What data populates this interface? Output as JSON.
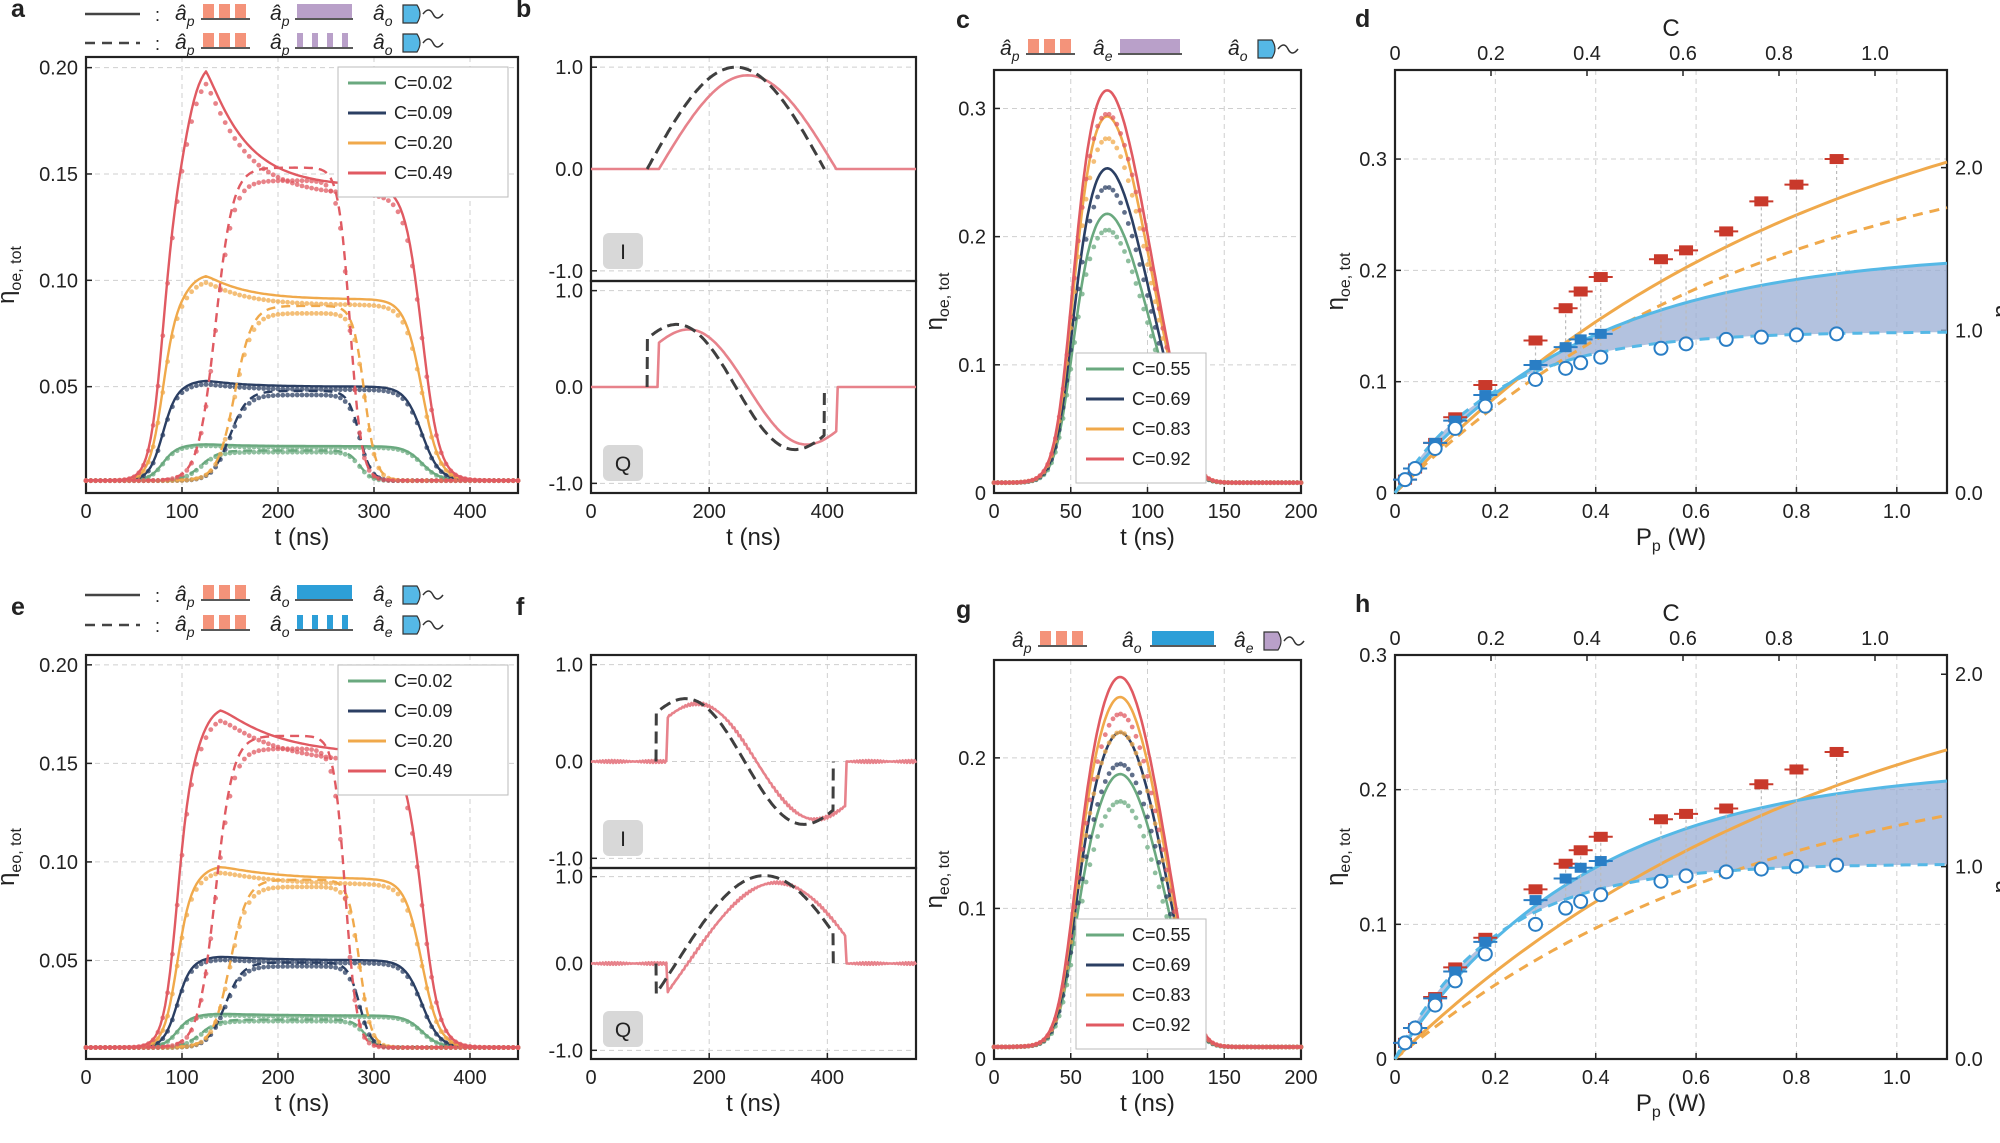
{
  "colors": {
    "green": "#6aa97f",
    "navy": "#2b3f63",
    "orange": "#f0a94b",
    "red": "#e05a62",
    "pink": "#e7828b",
    "dark": "#3f3f3f",
    "blue": "#2d9fd8",
    "lightblue": "#55b8e6",
    "band": "#9aaed4",
    "salmon": "#f4937a",
    "purple": "#b9a0c9",
    "datared": "#c9392b",
    "datablue": "#2a7ec5"
  },
  "labels": {
    "a": "a",
    "b": "b",
    "c": "c",
    "d": "d",
    "e": "e",
    "f": "f",
    "g": "g",
    "h": "h",
    "t_ns": "t (ns)",
    "eta_oe_tot": "η",
    "eta_oe_sub": "oe, tot",
    "eta_eo_sub": "eo, tot",
    "eta_oe_in_sub": "oe, in",
    "eta_eo_in_sub": "eo, in",
    "pp": "P",
    "pp_sub": "p",
    "pp_unit": " (W)",
    "C_axis": "C",
    "I": "I",
    "Q": "Q",
    "colon": ":",
    "ap": "â",
    "ap_sub": "p",
    "ae_sub": "e",
    "ao_sub": "o"
  },
  "chart_data": [
    {
      "panel": "a",
      "type": "line",
      "xlabel": "t (ns)",
      "ylabel": "η_oe, tot",
      "xlim": [
        0,
        450
      ],
      "ylim": [
        0,
        0.2
      ],
      "xticks": [
        "0",
        "100",
        "200",
        "300",
        "400"
      ],
      "yticks": [
        "0.05",
        "0.10",
        "0.15",
        "0.20"
      ],
      "legend": [
        "C=0.02",
        "C=0.09",
        "C=0.20",
        "C=0.49"
      ],
      "series": [
        {
          "name": "C=0.02",
          "solid_plateau": 0.016,
          "dashed_plateau": 0.014
        },
        {
          "name": "C=0.09",
          "solid_plateau": 0.044,
          "dashed_plateau": 0.042
        },
        {
          "name": "C=0.20",
          "solid_plateau": 0.085,
          "dashed_plateau": 0.082,
          "solid_peak": 0.097
        },
        {
          "name": "C=0.49",
          "solid_plateau": 0.138,
          "dashed_plateau": 0.147,
          "solid_peak": 0.197
        }
      ]
    },
    {
      "panel": "b",
      "type": "line",
      "xlabel": "t (ns)",
      "xlim": [
        0,
        550
      ],
      "xticks": [
        "0",
        "200",
        "400"
      ],
      "I": {
        "yticks": [
          "-1.0",
          "0.0",
          "1.0"
        ],
        "ylim": [
          -1.1,
          1.1
        ]
      },
      "Q": {
        "yticks": [
          "-1.0",
          "0.0",
          "1.0"
        ],
        "ylim": [
          -1.1,
          1.1
        ]
      }
    },
    {
      "panel": "c",
      "type": "line",
      "xlabel": "t (ns)",
      "ylabel": "η_oe, tot",
      "xlim": [
        0,
        200
      ],
      "ylim": [
        0,
        0.33
      ],
      "xticks": [
        "0",
        "50",
        "100",
        "150",
        "200"
      ],
      "yticks": [
        "0",
        "0.1",
        "0.2",
        "0.3"
      ],
      "legend": [
        "C=0.55",
        "C=0.69",
        "C=0.83",
        "C=0.92"
      ],
      "peaks": [
        0.215,
        0.25,
        0.29,
        0.31
      ]
    },
    {
      "panel": "d",
      "type": "scatter",
      "xlabel": "P_p (W)",
      "ylabel": "η_oe, tot",
      "y2label": "η_oe, in",
      "x2label": "C",
      "xlim": [
        0,
        1.1
      ],
      "ylim": [
        0,
        0.38
      ],
      "xticks": [
        "0",
        "0.2",
        "0.4",
        "0.6",
        "0.8",
        "1.0"
      ],
      "yticks": [
        "0",
        "0.1",
        "0.2",
        "0.3"
      ],
      "y2ticks": [
        "0.0",
        "1.0",
        "2.0"
      ],
      "x2ticks": [
        "0",
        "0.2",
        "0.4",
        "0.6",
        "0.8",
        "1.0"
      ],
      "red_points": {
        "x": [
          0.02,
          0.04,
          0.08,
          0.12,
          0.18,
          0.28,
          0.34,
          0.37,
          0.41,
          0.53,
          0.58,
          0.66,
          0.73,
          0.8,
          0.88
        ],
        "y": [
          0.012,
          0.022,
          0.045,
          0.068,
          0.097,
          0.137,
          0.166,
          0.181,
          0.194,
          0.21,
          0.218,
          0.235,
          0.262,
          0.277,
          0.3
        ]
      },
      "blue_points": {
        "x": [
          0.02,
          0.04,
          0.08,
          0.12,
          0.18,
          0.28,
          0.34,
          0.37,
          0.41
        ],
        "y": [
          0.012,
          0.022,
          0.045,
          0.065,
          0.088,
          0.115,
          0.131,
          0.138,
          0.143
        ]
      },
      "circle_points": {
        "x": [
          0.02,
          0.04,
          0.08,
          0.12,
          0.18,
          0.28,
          0.34,
          0.37,
          0.41,
          0.53,
          0.58,
          0.66,
          0.73,
          0.8,
          0.88
        ],
        "y": [
          0.012,
          0.022,
          0.04,
          0.058,
          0.078,
          0.102,
          0.112,
          0.117,
          0.122,
          0.13,
          0.134,
          0.138,
          0.14,
          0.142,
          0.143
        ]
      }
    },
    {
      "panel": "e",
      "type": "line",
      "xlabel": "t (ns)",
      "ylabel": "η_eo, tot",
      "xlim": [
        0,
        450
      ],
      "ylim": [
        0,
        0.2
      ],
      "xticks": [
        "0",
        "100",
        "200",
        "300",
        "400"
      ],
      "yticks": [
        "0.05",
        "0.10",
        "0.15",
        "0.20"
      ],
      "legend": [
        "C=0.02",
        "C=0.09",
        "C=0.20",
        "C=0.49"
      ]
    },
    {
      "panel": "f",
      "type": "line",
      "xlabel": "t (ns)",
      "xlim": [
        0,
        550
      ],
      "xticks": [
        "0",
        "200",
        "400"
      ],
      "I": {
        "yticks": [
          "-1.0",
          "0.0",
          "1.0"
        ]
      },
      "Q": {
        "yticks": [
          "-1.0",
          "0.0",
          "1.0"
        ]
      }
    },
    {
      "panel": "g",
      "type": "line",
      "xlabel": "t (ns)",
      "ylabel": "η_eo, tot",
      "xlim": [
        0,
        200
      ],
      "ylim": [
        0,
        0.265
      ],
      "xticks": [
        "0",
        "50",
        "100",
        "150",
        "200"
      ],
      "yticks": [
        "0",
        "0.1",
        "0.2"
      ],
      "legend": [
        "C=0.55",
        "C=0.69",
        "C=0.83",
        "C=0.92"
      ],
      "peaks": [
        0.185,
        0.212,
        0.235,
        0.248
      ]
    },
    {
      "panel": "h",
      "type": "scatter",
      "xlabel": "P_p (W)",
      "ylabel": "η_eo, tot",
      "y2label": "η_eo, in",
      "x2label": "C",
      "xlim": [
        0,
        1.1
      ],
      "ylim": [
        0,
        0.3
      ],
      "xticks": [
        "0",
        "0.2",
        "0.4",
        "0.6",
        "0.8",
        "1.0"
      ],
      "yticks": [
        "0",
        "0.1",
        "0.2",
        "0.3"
      ],
      "y2ticks": [
        "0.0",
        "1.0",
        "2.0"
      ],
      "x2ticks": [
        "0",
        "0.2",
        "0.4",
        "0.6",
        "0.8",
        "1.0"
      ],
      "red_points": {
        "x": [
          0.02,
          0.04,
          0.08,
          0.12,
          0.18,
          0.28,
          0.34,
          0.37,
          0.41,
          0.53,
          0.58,
          0.66,
          0.73,
          0.8,
          0.88
        ],
        "y": [
          0.012,
          0.023,
          0.046,
          0.068,
          0.09,
          0.126,
          0.145,
          0.155,
          0.165,
          0.178,
          0.182,
          0.186,
          0.204,
          0.215,
          0.228
        ]
      },
      "blue_points": {
        "x": [
          0.02,
          0.04,
          0.08,
          0.12,
          0.18,
          0.28,
          0.34,
          0.37,
          0.41
        ],
        "y": [
          0.012,
          0.023,
          0.045,
          0.065,
          0.087,
          0.118,
          0.134,
          0.142,
          0.147
        ]
      },
      "circle_points": {
        "x": [
          0.02,
          0.04,
          0.08,
          0.12,
          0.18,
          0.28,
          0.34,
          0.37,
          0.41,
          0.53,
          0.58,
          0.66,
          0.73,
          0.8,
          0.88
        ],
        "y": [
          0.012,
          0.023,
          0.04,
          0.058,
          0.078,
          0.1,
          0.112,
          0.117,
          0.122,
          0.132,
          0.136,
          0.139,
          0.141,
          0.143,
          0.144
        ]
      }
    }
  ]
}
